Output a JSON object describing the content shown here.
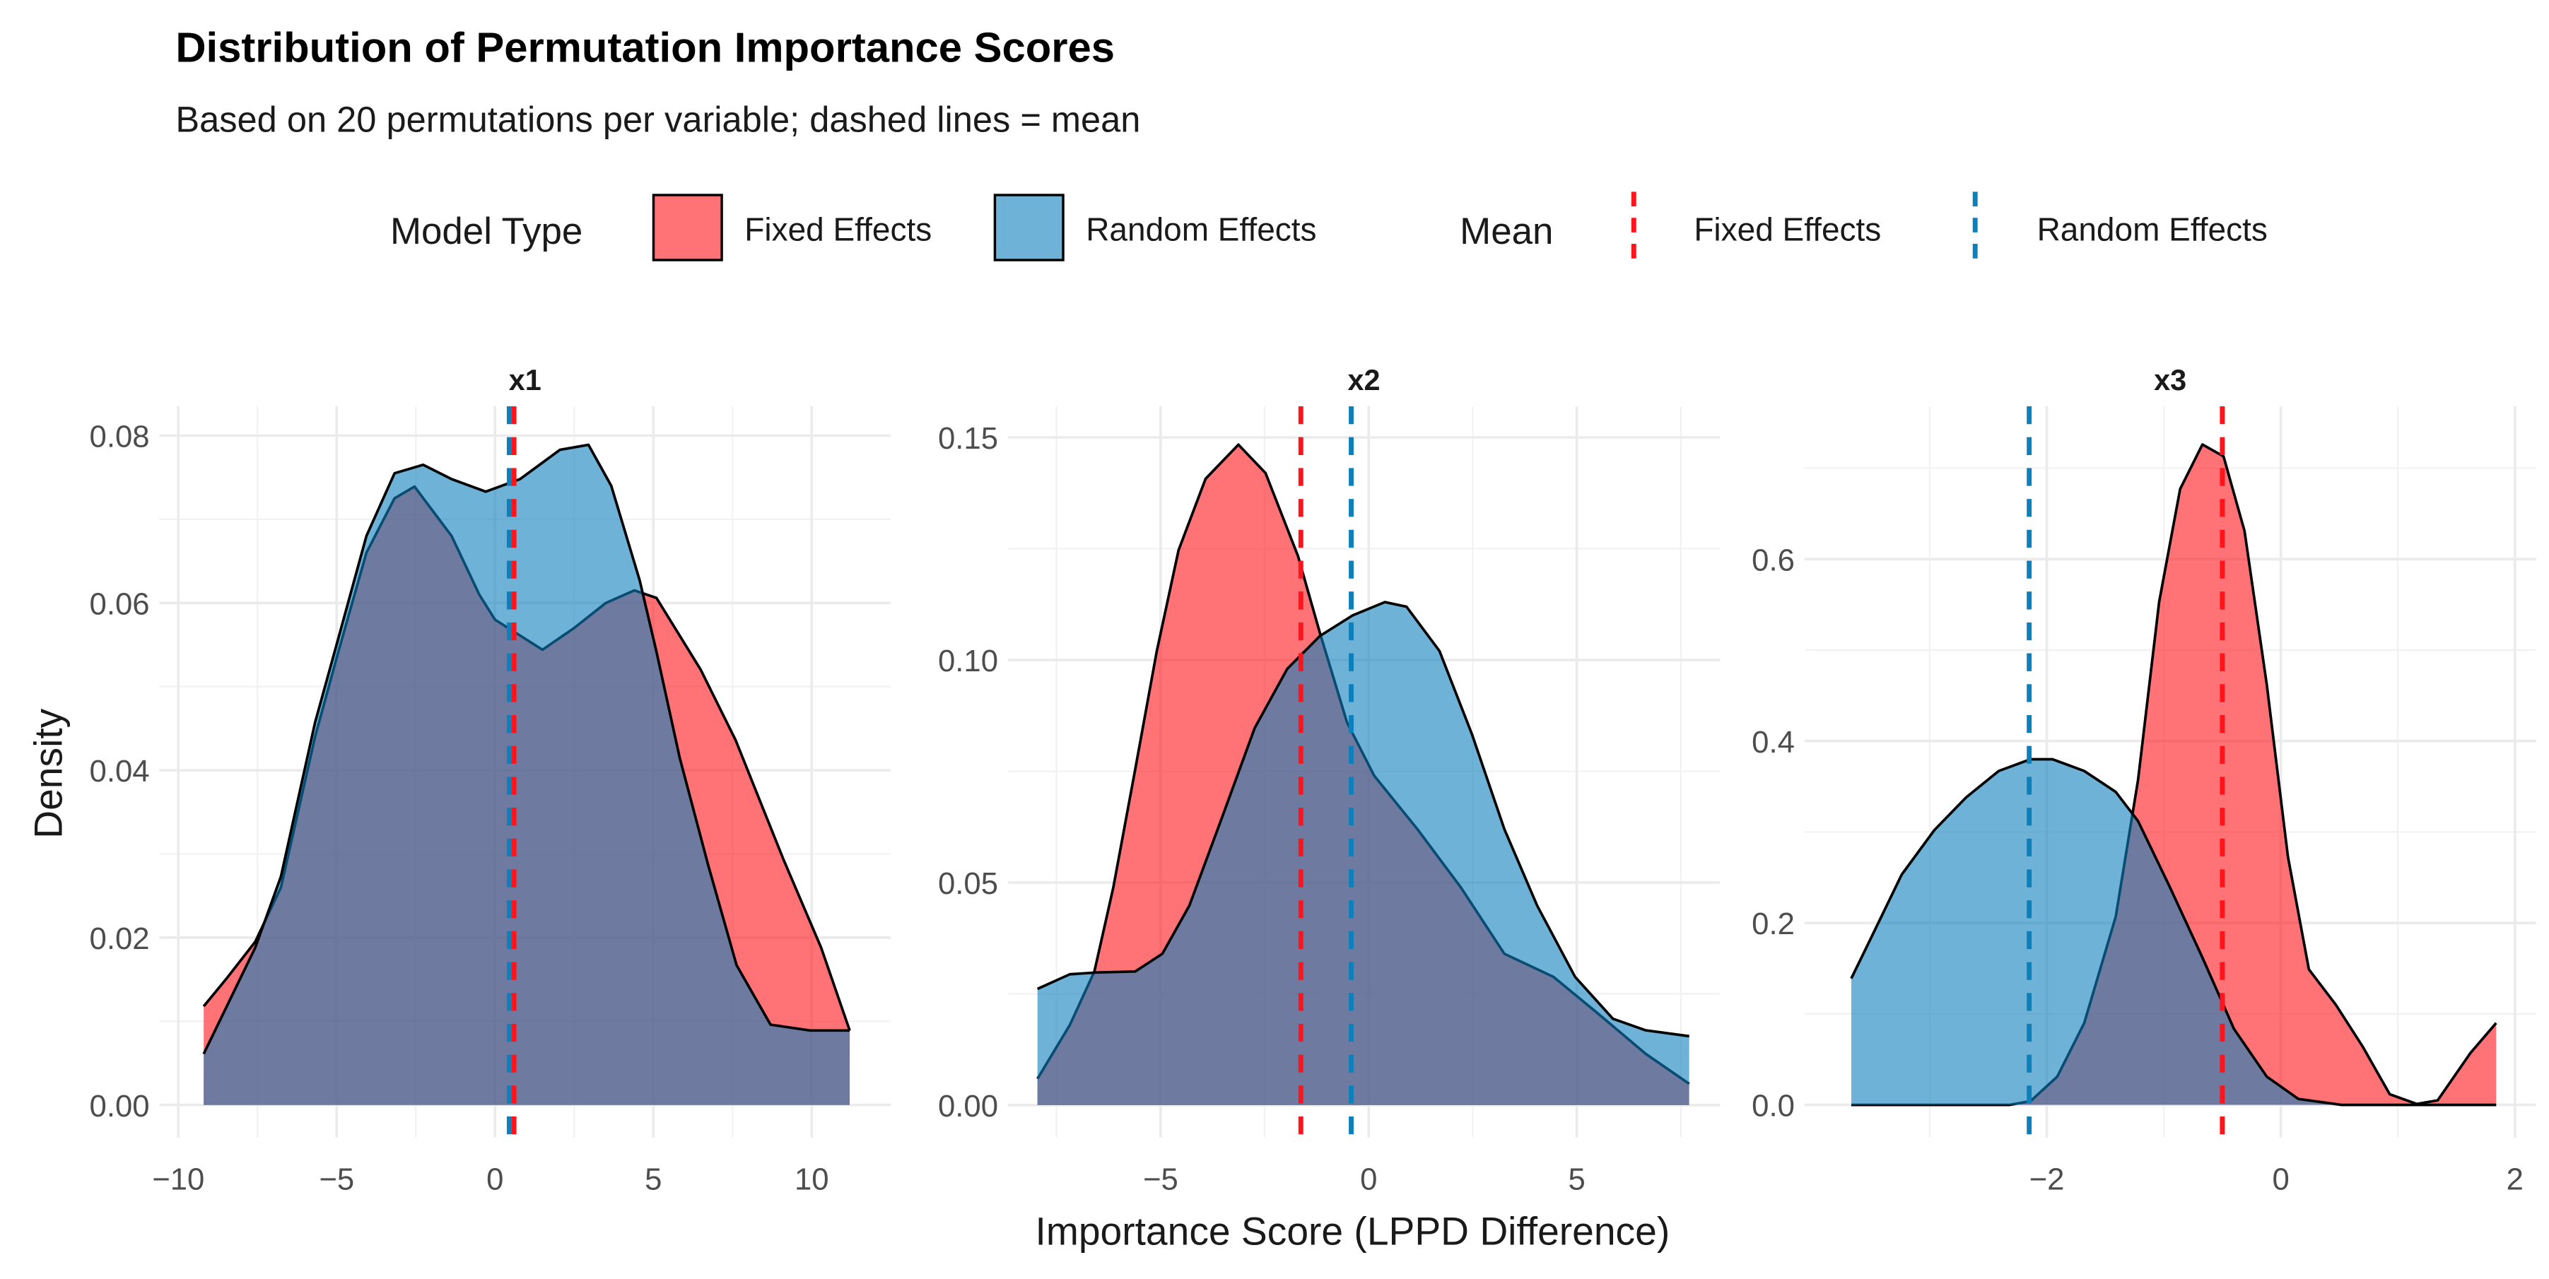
{
  "chart_data": {
    "type": "area",
    "title": "Distribution of Permutation Importance Scores",
    "subtitle": "Based on 20 permutations per variable; dashed lines = mean",
    "xlabel": "Importance Score (LPPD Difference)",
    "ylabel": "Density",
    "grid": true,
    "legend": {
      "placement": "top",
      "fill_title": "Model Type",
      "line_title": "Mean",
      "entries": [
        "Fixed Effects",
        "Random Effects"
      ]
    },
    "colors": {
      "Fixed Effects": "#ff141b",
      "Random Effects": "#0d80bc",
      "outline": "#000000"
    },
    "panels": [
      {
        "name": "x1",
        "xlim": [
          -10.6,
          12.5
        ],
        "ylim": [
          -0.0039,
          0.0835
        ],
        "xticks": [
          -10,
          -5,
          0,
          5,
          10
        ],
        "xminor": [
          -7.5,
          -2.5,
          2.5,
          7.5
        ],
        "yticks": [
          0,
          0.02,
          0.04,
          0.06,
          0.08
        ],
        "yminor": [
          0.01,
          0.03,
          0.05,
          0.07
        ],
        "ytick_decimals": 2,
        "means": {
          "Fixed Effects": 0.6,
          "Random Effects": 0.45
        },
        "series": [
          {
            "name": "Fixed Effects",
            "x": [
              -9.2,
              -8.5,
              -7.57,
              -6.76,
              -5.68,
              -4.96,
              -4.06,
              -3.17,
              -2.54,
              -1.37,
              -0.5,
              0,
              1.5,
              2.5,
              3.5,
              4.4,
              5.1,
              6.5,
              7.6,
              9.1,
              10.3,
              11.2
            ],
            "y": [
              0.0118,
              0.015,
              0.0195,
              0.026,
              0.044,
              0.054,
              0.066,
              0.0725,
              0.0739,
              0.068,
              0.061,
              0.058,
              0.0544,
              0.057,
              0.06,
              0.0615,
              0.0606,
              0.052,
              0.0436,
              0.0294,
              0.0188,
              0.0089
            ]
          },
          {
            "name": "Random Effects",
            "x": [
              -9.2,
              -7.57,
              -6.76,
              -5.68,
              -4.96,
              -4.06,
              -3.17,
              -2.27,
              -1.37,
              -0.29,
              0.79,
              2.05,
              2.95,
              3.67,
              4.57,
              5.1,
              5.83,
              6.73,
              7.63,
              8.7,
              9.96,
              11.2
            ],
            "y": [
              0.0061,
              0.0188,
              0.0273,
              0.0457,
              0.0556,
              0.068,
              0.0755,
              0.0765,
              0.0748,
              0.0733,
              0.0748,
              0.0783,
              0.0789,
              0.074,
              0.0627,
              0.0542,
              0.0415,
              0.0287,
              0.0167,
              0.0096,
              0.0089,
              0.0089
            ]
          }
        ]
      },
      {
        "name": "x2",
        "xlim": [
          -8.67,
          8.44
        ],
        "ylim": [
          -0.0073,
          0.157
        ],
        "xticks": [
          -5,
          0,
          5
        ],
        "xminor": [
          -7.5,
          -2.5,
          2.5,
          7.5
        ],
        "yticks": [
          0,
          0.05,
          0.1,
          0.15
        ],
        "yminor": [
          0.025,
          0.075,
          0.125
        ],
        "ytick_decimals": 2,
        "means": {
          "Fixed Effects": -1.63,
          "Random Effects": -0.42
        },
        "series": [
          {
            "name": "Fixed Effects",
            "x": [
              -7.96,
              -7.18,
              -6.59,
              -6.14,
              -5.61,
              -5.09,
              -4.57,
              -3.92,
              -3.13,
              -2.48,
              -1.7,
              -1.17,
              -0.52,
              0.13,
              1.17,
              2.22,
              3.26,
              4.44,
              5.48,
              6.66,
              7.7
            ],
            "y": [
              0.0059,
              0.018,
              0.03,
              0.0488,
              0.0754,
              0.102,
              0.1247,
              0.1407,
              0.1484,
              0.142,
              0.1234,
              0.106,
              0.086,
              0.074,
              0.062,
              0.0488,
              0.034,
              0.0288,
              0.0208,
              0.0115,
              0.0048
            ]
          },
          {
            "name": "Random Effects",
            "x": [
              -7.96,
              -7.18,
              -6.53,
              -5.61,
              -4.96,
              -4.31,
              -3.52,
              -2.74,
              -1.96,
              -1.17,
              -0.39,
              0.39,
              0.91,
              1.7,
              2.48,
              3.26,
              4.05,
              4.96,
              5.87,
              6.66,
              7.7
            ],
            "y": [
              0.0261,
              0.0294,
              0.0298,
              0.03,
              0.034,
              0.0448,
              0.0647,
              0.0847,
              0.098,
              0.1054,
              0.11,
              0.113,
              0.112,
              0.102,
              0.0834,
              0.062,
              0.0448,
              0.0288,
              0.0194,
              0.0168,
              0.0155
            ]
          }
        ]
      },
      {
        "name": "x3",
        "xlim": [
          -4.07,
          2.18
        ],
        "ylim": [
          -0.036,
          0.768
        ],
        "xticks": [
          -2,
          0,
          2
        ],
        "xminor": [
          -3,
          -1,
          1
        ],
        "yticks": [
          0,
          0.2,
          0.4,
          0.6
        ],
        "yminor": [
          0.1,
          0.3,
          0.5,
          0.7
        ],
        "ytick_decimals": 1,
        "means": {
          "Fixed Effects": -0.5,
          "Random Effects": -2.15
        },
        "series": [
          {
            "name": "Fixed Effects",
            "x": [
              -3.67,
              -2.32,
              -2.14,
              -1.91,
              -1.68,
              -1.41,
              -1.22,
              -1.04,
              -0.86,
              -0.67,
              -0.49,
              -0.31,
              -0.12,
              0.06,
              0.24,
              0.47,
              0.7,
              0.93,
              1.16,
              1.34,
              1.62,
              1.84
            ],
            "y": [
              0,
              0,
              0.004,
              0.031,
              0.09,
              0.207,
              0.357,
              0.553,
              0.677,
              0.726,
              0.713,
              0.631,
              0.462,
              0.273,
              0.149,
              0.11,
              0.064,
              0.0117,
              0.001,
              0.005,
              0.057,
              0.09
            ]
          },
          {
            "name": "Random Effects",
            "x": [
              -3.67,
              -3.51,
              -3.24,
              -2.96,
              -2.69,
              -2.41,
              -2.14,
              -1.95,
              -1.68,
              -1.41,
              -1.22,
              -0.95,
              -0.67,
              -0.4,
              -0.12,
              0.15,
              0.52,
              1.84
            ],
            "y": [
              0.139,
              0.181,
              0.253,
              0.302,
              0.338,
              0.367,
              0.38,
              0.38,
              0.367,
              0.344,
              0.312,
              0.24,
              0.162,
              0.0835,
              0.031,
              0.0065,
              0,
              0
            ]
          }
        ]
      }
    ]
  }
}
